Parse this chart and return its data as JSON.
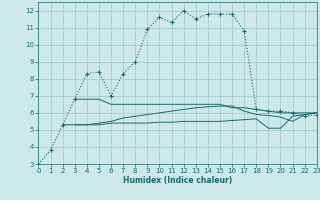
{
  "xlabel": "Humidex (Indice chaleur)",
  "xlim": [
    0,
    23
  ],
  "ylim": [
    3,
    12.5
  ],
  "yticks": [
    3,
    4,
    5,
    6,
    7,
    8,
    9,
    10,
    11,
    12
  ],
  "xticks": [
    0,
    1,
    2,
    3,
    4,
    5,
    6,
    7,
    8,
    9,
    10,
    11,
    12,
    13,
    14,
    15,
    16,
    17,
    18,
    19,
    20,
    21,
    22,
    23
  ],
  "bg_color": "#cce8e8",
  "grid_color": "#aacccc",
  "line_color": "#1a6b6b",
  "series1_x": [
    0,
    1,
    2,
    3,
    4,
    5,
    6,
    7,
    8,
    9,
    10,
    11,
    12,
    13,
    14,
    15,
    16,
    17,
    18,
    19,
    20,
    21,
    22,
    23
  ],
  "series1_y": [
    3.0,
    3.8,
    5.3,
    6.8,
    8.3,
    8.4,
    7.0,
    8.3,
    9.0,
    10.9,
    11.6,
    11.3,
    12.0,
    11.5,
    11.8,
    11.8,
    11.8,
    10.8,
    6.2,
    6.1,
    6.1,
    6.0,
    5.8,
    5.9
  ],
  "series2_x": [
    2,
    3,
    4,
    5,
    6,
    7,
    8,
    9,
    10,
    11,
    12,
    13,
    14,
    15,
    16,
    17,
    18,
    19,
    20,
    21,
    22,
    23
  ],
  "series2_y": [
    5.3,
    5.3,
    5.3,
    5.3,
    5.4,
    5.4,
    5.4,
    5.4,
    5.45,
    5.45,
    5.5,
    5.5,
    5.5,
    5.5,
    5.55,
    5.6,
    5.65,
    5.1,
    5.1,
    5.8,
    5.9,
    6.0
  ],
  "series3_x": [
    3,
    4,
    5,
    6,
    7,
    8,
    9,
    10,
    11,
    12,
    13,
    14,
    15,
    16,
    17,
    18,
    19,
    20,
    21,
    22,
    23
  ],
  "series3_y": [
    6.8,
    6.8,
    6.8,
    6.5,
    6.5,
    6.5,
    6.5,
    6.5,
    6.5,
    6.5,
    6.5,
    6.5,
    6.5,
    6.3,
    6.3,
    6.2,
    6.1,
    6.0,
    6.0,
    6.0,
    6.0
  ],
  "series4_x": [
    3,
    4,
    5,
    6,
    7,
    8,
    9,
    10,
    11,
    12,
    13,
    14,
    15,
    16,
    17,
    18,
    19,
    20,
    21,
    22,
    23
  ],
  "series4_y": [
    5.3,
    5.3,
    5.4,
    5.5,
    5.7,
    5.8,
    5.9,
    6.0,
    6.1,
    6.2,
    6.3,
    6.35,
    6.4,
    6.4,
    6.1,
    5.9,
    5.85,
    5.75,
    5.5,
    5.9,
    6.0
  ]
}
